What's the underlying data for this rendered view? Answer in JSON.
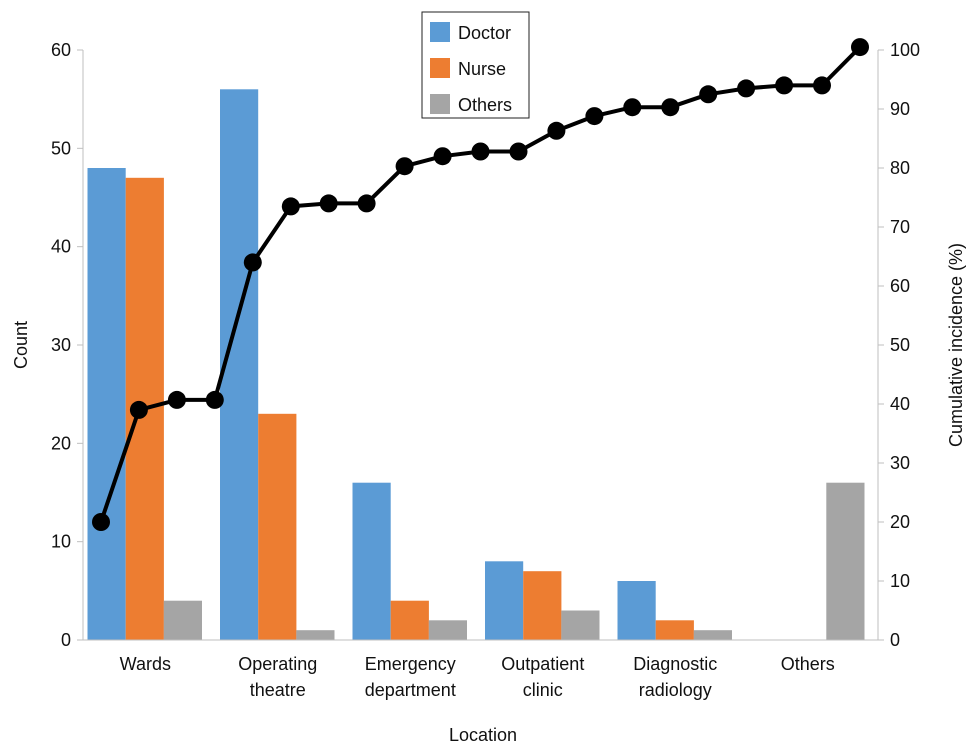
{
  "chart_data": {
    "type": "bar",
    "combo": "bar+line",
    "categories": [
      "Wards",
      "Operating theatre",
      "Emergency department",
      "Outpatient clinic",
      "Diagnostic radiology",
      "Others"
    ],
    "category_lines": [
      [
        "Wards"
      ],
      [
        "Operating",
        "theatre"
      ],
      [
        "Emergency",
        "department"
      ],
      [
        "Outpatient",
        "clinic"
      ],
      [
        "Diagnostic",
        "radiology"
      ],
      [
        "Others"
      ]
    ],
    "series": [
      {
        "name": "Doctor",
        "color": "#5b9bd5",
        "values": [
          48,
          56,
          16,
          8,
          6,
          0
        ]
      },
      {
        "name": "Nurse",
        "color": "#ed7d31",
        "values": [
          47,
          23,
          4,
          7,
          2,
          0
        ]
      },
      {
        "name": "Others",
        "color": "#a5a5a5",
        "values": [
          4,
          1,
          2,
          3,
          1,
          16
        ]
      }
    ],
    "line": {
      "axis": "right",
      "color": "#000000",
      "values": [
        20,
        39,
        40.7,
        40.7,
        64,
        73.5,
        74,
        74,
        80.3,
        82,
        82.8,
        82.8,
        86.3,
        88.8,
        90.3,
        90.3,
        92.5,
        93.5,
        94,
        94,
        100.5
      ]
    },
    "xlabel": "Location",
    "ylabel": "Count",
    "y2label": "Cumulative incidence (%)",
    "ylim": [
      0,
      60
    ],
    "yticks": [
      0,
      10,
      20,
      30,
      40,
      50,
      60
    ],
    "y2lim": [
      0,
      100
    ],
    "y2ticks": [
      0,
      10,
      20,
      30,
      40,
      50,
      60,
      70,
      80,
      90,
      100
    ],
    "legend_position": "top-center",
    "grid": false
  }
}
